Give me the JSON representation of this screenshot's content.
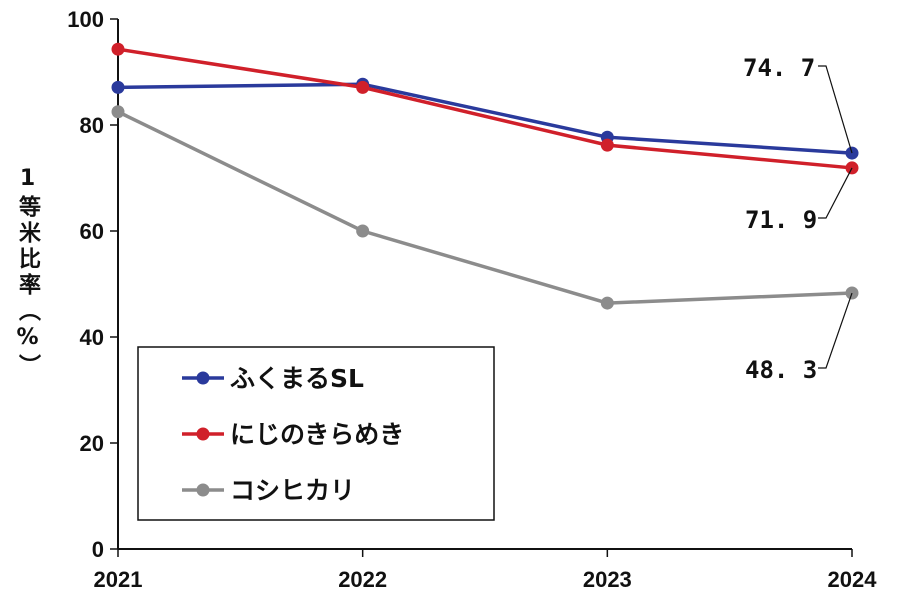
{
  "chart_data": {
    "type": "line",
    "title": "",
    "xlabel": "",
    "ylabel": "1等米比率（%）",
    "ylabel_chars": [
      "1",
      "等",
      "米",
      "比",
      "率",
      "（",
      "%",
      "）"
    ],
    "x": [
      "2021",
      "2022",
      "2023",
      "2024"
    ],
    "ylim": [
      0,
      100
    ],
    "yticks": [
      0,
      20,
      40,
      60,
      80,
      100
    ],
    "grid": false,
    "legend_position": "bottom-left",
    "series": [
      {
        "name": "ふくまるSL",
        "color": "#2a3a9c",
        "values": [
          87.1,
          87.7,
          77.7,
          74.7
        ]
      },
      {
        "name": "にじのきらめき",
        "color": "#d0202a",
        "values": [
          94.3,
          87.1,
          76.2,
          71.9
        ]
      },
      {
        "name": "コシヒカリ",
        "color": "#8c8c8c",
        "values": [
          82.5,
          60.0,
          46.4,
          48.3
        ]
      }
    ],
    "annotations": [
      "74. 7",
      "71. 9",
      "48. 3"
    ]
  }
}
